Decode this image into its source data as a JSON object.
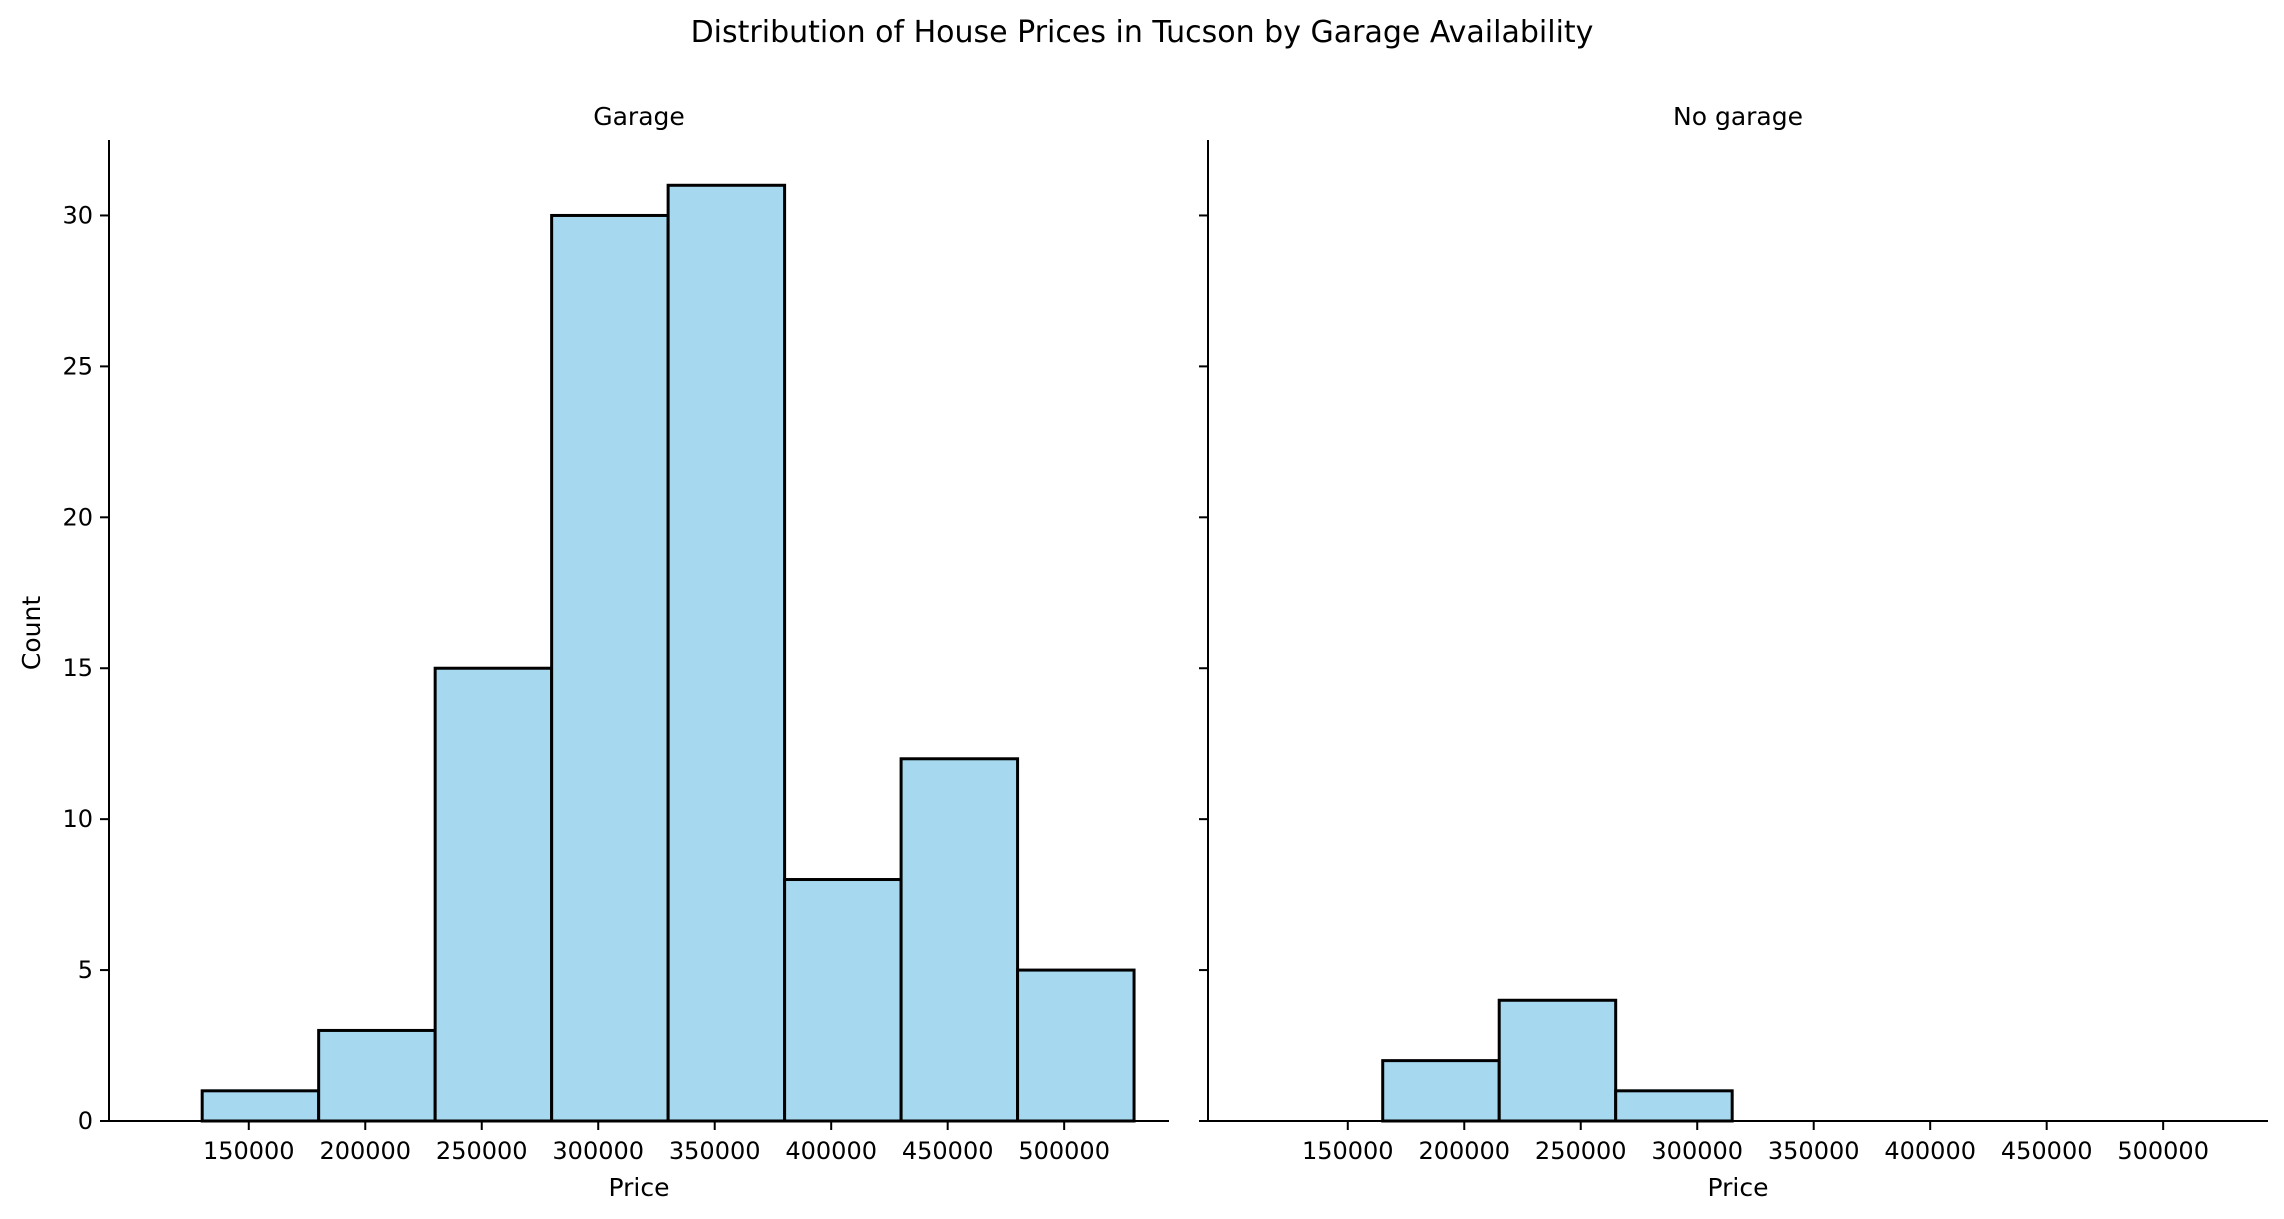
{
  "chart_data": {
    "type": "bar",
    "subtype": "histogram",
    "title": "Distribution of House Prices in Tucson by Garage Availability",
    "ylabel": "Count",
    "ylim": [
      0,
      32.5
    ],
    "yticks": [
      0,
      5,
      10,
      15,
      20,
      25,
      30
    ],
    "xlim": [
      90000,
      545000
    ],
    "xticks": [
      150000,
      200000,
      250000,
      300000,
      350000,
      400000,
      450000,
      500000
    ],
    "shared_y": true,
    "bar_color": "#a6d9f0",
    "edge_color": "#000000",
    "panels": [
      {
        "title": "Garage",
        "xlabel": "Price",
        "bins": [
          {
            "start": 130000,
            "end": 180000,
            "count": 1
          },
          {
            "start": 180000,
            "end": 230000,
            "count": 3
          },
          {
            "start": 230000,
            "end": 280000,
            "count": 15
          },
          {
            "start": 280000,
            "end": 330000,
            "count": 30
          },
          {
            "start": 330000,
            "end": 380000,
            "count": 31
          },
          {
            "start": 380000,
            "end": 430000,
            "count": 8
          },
          {
            "start": 430000,
            "end": 480000,
            "count": 12
          },
          {
            "start": 480000,
            "end": 530000,
            "count": 5
          }
        ]
      },
      {
        "title": "No garage",
        "xlabel": "Price",
        "bins": [
          {
            "start": 165000,
            "end": 215000,
            "count": 2
          },
          {
            "start": 215000,
            "end": 265000,
            "count": 4
          },
          {
            "start": 265000,
            "end": 315000,
            "count": 1
          }
        ]
      }
    ]
  }
}
